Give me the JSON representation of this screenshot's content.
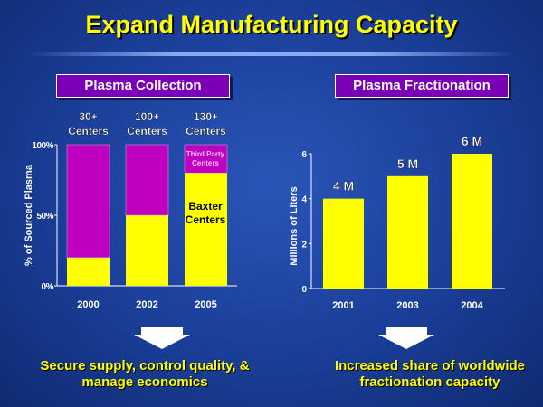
{
  "title": "Expand Manufacturing Capacity",
  "chart_data": [
    {
      "type": "bar",
      "stacked": true,
      "title": "Plasma Collection",
      "ylabel": "% of Sourced Plasma",
      "ylim": [
        0,
        100
      ],
      "yticks": [
        "0%",
        "50%",
        "100%"
      ],
      "categories": [
        "2000",
        "2002",
        "2005"
      ],
      "header_labels": [
        [
          "30+",
          "Centers"
        ],
        [
          "100+",
          "Centers"
        ],
        [
          "130+",
          "Centers"
        ]
      ],
      "series": [
        {
          "name": "Baxter Centers",
          "label": [
            "Baxter",
            "Centers"
          ],
          "color": "#ffff00",
          "values": [
            20,
            50,
            80
          ]
        },
        {
          "name": "Third Party Centers",
          "label": [
            "Third Party",
            "Centers"
          ],
          "color": "#c000c0",
          "values": [
            80,
            50,
            20
          ]
        }
      ]
    },
    {
      "type": "bar",
      "title": "Plasma Fractionation",
      "ylabel": "Millions of Liters",
      "ylim": [
        0,
        6
      ],
      "yticks": [
        "0",
        "2",
        "4",
        "6"
      ],
      "categories": [
        "2001",
        "2003",
        "2004"
      ],
      "values": [
        4,
        5,
        6
      ],
      "data_labels": [
        "4 M",
        "5 M",
        "6 M"
      ],
      "color": "#ffff00"
    }
  ],
  "bottom_left": [
    "Secure supply, control quality, &",
    "manage economics"
  ],
  "bottom_right": [
    "Increased share of worldwide",
    "fractionation capacity"
  ]
}
